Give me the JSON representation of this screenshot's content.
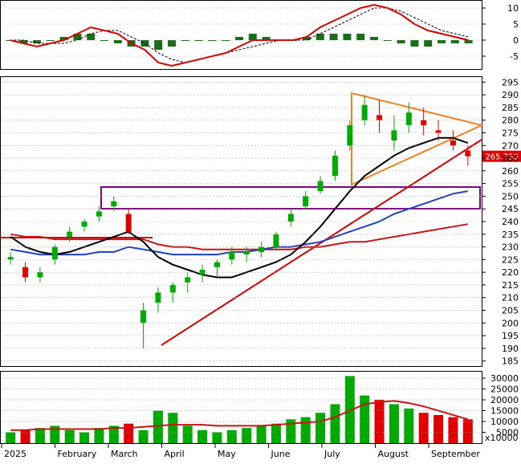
{
  "chart_data": [
    {
      "type": "line",
      "panel": "macd",
      "ylim": [
        -9,
        12
      ],
      "yticks": [
        "10",
        "5",
        "0",
        "-5"
      ],
      "series": [
        {
          "values": [
            0,
            -1,
            -2,
            -1,
            0,
            2,
            4,
            3,
            2,
            -1,
            -3,
            -7,
            -8,
            -7,
            -6,
            -5,
            -4,
            -2,
            0,
            0,
            0,
            0,
            1,
            4,
            6,
            8,
            10,
            11,
            10,
            8,
            5,
            3,
            2,
            1,
            0
          ]
        },
        {
          "values": [
            0,
            0,
            -1,
            -1,
            -1,
            0,
            2,
            3,
            3,
            1,
            -1,
            -4,
            -6,
            -7,
            -6,
            -5,
            -4,
            -3,
            -2,
            -1,
            0,
            0,
            0,
            2,
            4,
            6,
            8,
            10,
            10,
            9,
            7,
            5,
            3,
            2,
            1
          ]
        },
        {
          "values": [
            0,
            -1,
            -1,
            0,
            1,
            2,
            2,
            0,
            -1,
            -2,
            -2,
            -3,
            -2,
            0,
            0,
            0,
            0,
            1,
            2,
            1,
            0,
            0,
            1,
            2,
            2,
            2,
            2,
            1,
            0,
            -1,
            -2,
            -2,
            -1,
            -1,
            -1
          ]
        }
      ],
      "colors": {
        "macd": "#d40000",
        "signal": "#000000",
        "histogram": "#1a6e1a"
      }
    },
    {
      "type": "line",
      "panel": "price",
      "ylim": [
        183,
        297
      ],
      "yticks": [
        "295",
        "290",
        "285",
        "280",
        "275",
        "270",
        "265",
        "260",
        "255",
        "250",
        "245",
        "240",
        "235",
        "230",
        "225",
        "220",
        "215",
        "210",
        "205",
        "200",
        "195",
        "190",
        "185"
      ],
      "last_price_label": "265.750",
      "x_labels": [
        "2025",
        "February",
        "March",
        "April",
        "May",
        "June",
        "July",
        "August",
        "September"
      ],
      "ohlc": [
        [
          225,
          228,
          223,
          226
        ],
        [
          222,
          224,
          216,
          218
        ],
        [
          218,
          222,
          216,
          220
        ],
        [
          225,
          231,
          223,
          230
        ],
        [
          234,
          238,
          232,
          236
        ],
        [
          238,
          241,
          236,
          240
        ],
        [
          242,
          246,
          240,
          244
        ],
        [
          246,
          250,
          244,
          248
        ],
        [
          243,
          245,
          235,
          236
        ],
        [
          200,
          208,
          190,
          205
        ],
        [
          208,
          214,
          204,
          212
        ],
        [
          212,
          216,
          208,
          215
        ],
        [
          216,
          220,
          212,
          218
        ],
        [
          219,
          223,
          216,
          221
        ],
        [
          222,
          225,
          218,
          224
        ],
        [
          225,
          230,
          223,
          228
        ],
        [
          227,
          230,
          224,
          228
        ],
        [
          228,
          232,
          226,
          230
        ],
        [
          230,
          236,
          229,
          235
        ],
        [
          240,
          245,
          238,
          243
        ],
        [
          246,
          252,
          245,
          250
        ],
        [
          252,
          258,
          251,
          256
        ],
        [
          258,
          268,
          256,
          266
        ],
        [
          270,
          280,
          268,
          278
        ],
        [
          280,
          290,
          278,
          286
        ],
        [
          282,
          288,
          275,
          280
        ],
        [
          272,
          282,
          268,
          276
        ],
        [
          278,
          287,
          275,
          283
        ],
        [
          280,
          285,
          274,
          278
        ],
        [
          276,
          280,
          272,
          275
        ],
        [
          272,
          276,
          268,
          270
        ],
        [
          268,
          270,
          262,
          265.75
        ]
      ],
      "ma_black": [
        234,
        230,
        228,
        227,
        228,
        230,
        232,
        234,
        236,
        232,
        226,
        223,
        221,
        219,
        218,
        218,
        220,
        222,
        224,
        227,
        232,
        238,
        245,
        252,
        258,
        262,
        266,
        269,
        271,
        273,
        273,
        271
      ],
      "ma_blue": [
        229,
        228,
        227,
        227,
        227,
        227,
        228,
        228,
        230,
        229,
        228,
        227,
        227,
        227,
        227,
        228,
        228,
        229,
        230,
        230,
        231,
        232,
        234,
        236,
        238,
        240,
        243,
        245,
        247,
        249,
        251,
        252
      ],
      "ma_red": [
        235,
        234,
        234,
        233,
        233,
        233,
        233,
        233,
        233,
        233,
        231,
        230,
        230,
        229,
        229,
        229,
        229,
        229,
        229,
        229,
        230,
        230,
        231,
        232,
        232,
        233,
        234,
        235,
        236,
        237,
        238,
        239
      ],
      "colors": {
        "up": "#00aa00",
        "down": "#e00000",
        "triangle": "#f08020",
        "support_box": "#800080",
        "trend": "#d40000",
        "ma_black": "#000000",
        "ma_blue": "#1f3fbf",
        "ma_red": "#c81414"
      }
    },
    {
      "type": "bar",
      "panel": "volume",
      "ylim": [
        0,
        33000
      ],
      "yticks": [
        "30000",
        "25000",
        "20000",
        "15000",
        "10000",
        "5000"
      ],
      "unit_label": "x10000",
      "values": [
        5000,
        6000,
        7000,
        8000,
        6000,
        5000,
        7000,
        8000,
        9000,
        6000,
        15000,
        14000,
        8000,
        6000,
        5000,
        6000,
        7000,
        8000,
        9000,
        11000,
        12000,
        14000,
        18000,
        31000,
        22000,
        20000,
        18000,
        16000,
        14000,
        13000,
        12000,
        11000
      ],
      "ma": [
        6000,
        6000,
        6500,
        6500,
        6500,
        6500,
        6500,
        7000,
        7000,
        7500,
        8000,
        8500,
        8500,
        8500,
        8000,
        8000,
        8000,
        8000,
        8500,
        9000,
        9500,
        10000,
        12000,
        15000,
        18000,
        19000,
        19500,
        18500,
        17000,
        15000,
        13000,
        11000
      ],
      "colors": {
        "up": "#00aa00",
        "down": "#e00000",
        "ma": "#c81414"
      }
    }
  ]
}
